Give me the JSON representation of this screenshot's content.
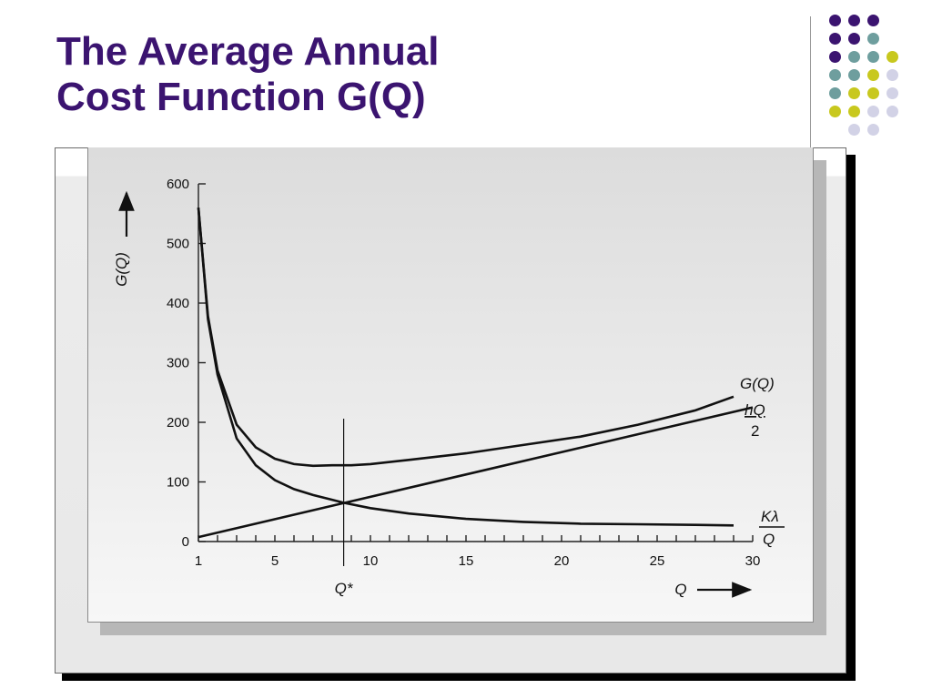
{
  "slide": {
    "title_line1": "The Average Annual",
    "title_line2": "Cost Function G(Q)",
    "title_color": "#3b1470",
    "dot_colors": {
      "purple": "#3b1470",
      "teal": "#6e9e9e",
      "yellow": "#c8c81e",
      "lavender": "#d2d2e6"
    }
  },
  "chart_data": {
    "type": "line",
    "title": "",
    "xlabel": "Q",
    "ylabel": "G(Q)",
    "xlim": [
      1,
      30
    ],
    "ylim": [
      0,
      600
    ],
    "x_ticks": [
      1,
      5,
      10,
      15,
      20,
      25,
      30
    ],
    "y_ticks": [
      0,
      100,
      200,
      300,
      400,
      500,
      600
    ],
    "grid": false,
    "series": [
      {
        "name": "G(Q)",
        "x": [
          1,
          1.5,
          2,
          3,
          4,
          5,
          6,
          7,
          8,
          8.6,
          9,
          10,
          12,
          15,
          18,
          21,
          24,
          27,
          29
        ],
        "y": [
          560,
          378,
          287,
          196,
          158,
          139,
          130,
          127,
          128,
          128,
          128,
          130,
          137,
          148,
          162,
          176,
          196,
          220,
          243
        ]
      },
      {
        "name": "hQ/2",
        "x": [
          1,
          30
        ],
        "y": [
          7.5,
          225
        ]
      },
      {
        "name": "Kλ/Q",
        "x": [
          1,
          1.5,
          2,
          3,
          4,
          5,
          6,
          7,
          8,
          8.6,
          10,
          12,
          15,
          18,
          21,
          24,
          27,
          29
        ],
        "y": [
          560,
          373,
          280,
          173,
          128,
          103,
          88,
          78,
          70,
          65,
          56,
          47,
          38,
          33,
          30,
          29,
          28,
          27
        ]
      }
    ],
    "curve_labels": {
      "g": "G(Q)",
      "linear_num": "hQ",
      "linear_den": "2",
      "hyper_num": "Kλ",
      "hyper_den": "Q"
    },
    "q_star_label": "Q*",
    "q_star_x": 8.6
  }
}
